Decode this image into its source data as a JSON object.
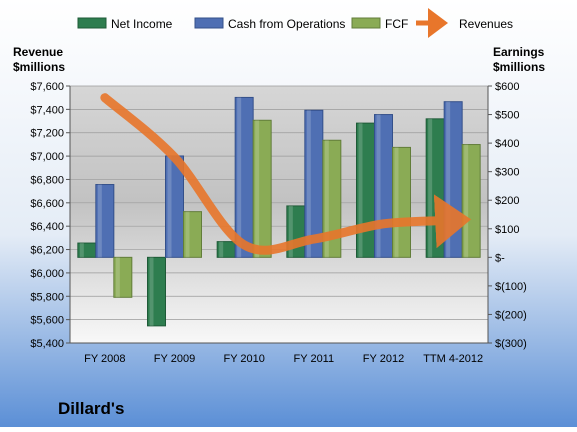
{
  "chart_data": {
    "type": "bar",
    "title": "Dillard's",
    "categories": [
      "FY 2008",
      "FY 2009",
      "FY 2010",
      "FY 2011",
      "FY 2012",
      "TTM 4-2012"
    ],
    "left_axis": {
      "label_line1": "Revenue",
      "label_line2": "$millions",
      "range": [
        5400,
        7600
      ],
      "ticks": [
        "$7,600",
        "$7,400",
        "$7,200",
        "$7,000",
        "$6,800",
        "$6,600",
        "$6,400",
        "$6,200",
        "$6,000",
        "$5,800",
        "$5,600",
        "$5,400"
      ]
    },
    "right_axis": {
      "label_line1": "Earnings",
      "label_line2": "$millions",
      "range": [
        -300,
        600
      ],
      "ticks": [
        "$600",
        "$500",
        "$400",
        "$300",
        "$200",
        "$100",
        "$-",
        "$(100)",
        "$(200)",
        "$(300)"
      ]
    },
    "series": [
      {
        "name": "Net Income",
        "type": "bar",
        "axis": "right",
        "color": "#2e7d4f",
        "values": [
          50,
          -240,
          55,
          180,
          470,
          485
        ]
      },
      {
        "name": "Cash from Operations",
        "type": "bar",
        "axis": "right",
        "color": "#4f6fb3",
        "values": [
          255,
          355,
          560,
          515,
          500,
          545
        ]
      },
      {
        "name": "FCF",
        "type": "bar",
        "axis": "right",
        "color": "#8aab55",
        "values": [
          -140,
          160,
          480,
          410,
          385,
          395
        ]
      },
      {
        "name": "Revenues",
        "type": "line",
        "axis": "left",
        "color": "#e8762b",
        "values": [
          7500,
          6990,
          6240,
          6290,
          6420,
          6450
        ]
      }
    ],
    "legend_position": "top",
    "grid": true
  }
}
